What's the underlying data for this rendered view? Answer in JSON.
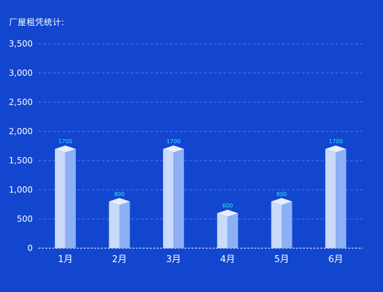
{
  "chart_data": {
    "type": "bar",
    "title": "厂屋租凭统计:",
    "categories": [
      "1月",
      "2月",
      "3月",
      "4月",
      "5月",
      "6月"
    ],
    "values": [
      1700,
      800,
      1700,
      600,
      800,
      1700
    ],
    "data_labels": [
      "1700",
      "800",
      "1700",
      "600",
      "800",
      "1700"
    ],
    "ylim": [
      0,
      3500
    ],
    "yticks": [
      0,
      500,
      1000,
      1500,
      2000,
      2500,
      3000,
      3500
    ],
    "ytick_labels": [
      "0",
      "500",
      "1,000",
      "1,500",
      "2,000",
      "2,500",
      "3,000",
      "3,500"
    ],
    "grid": true,
    "colors": {
      "background": "#1246cf",
      "bar_front": "#c9dafb",
      "bar_side": "#8cb0f3",
      "bar_top": "#e6efff",
      "data_label": "#33e0ff",
      "axis_text": "#ffffff",
      "grid": "#4f7ae6"
    }
  }
}
